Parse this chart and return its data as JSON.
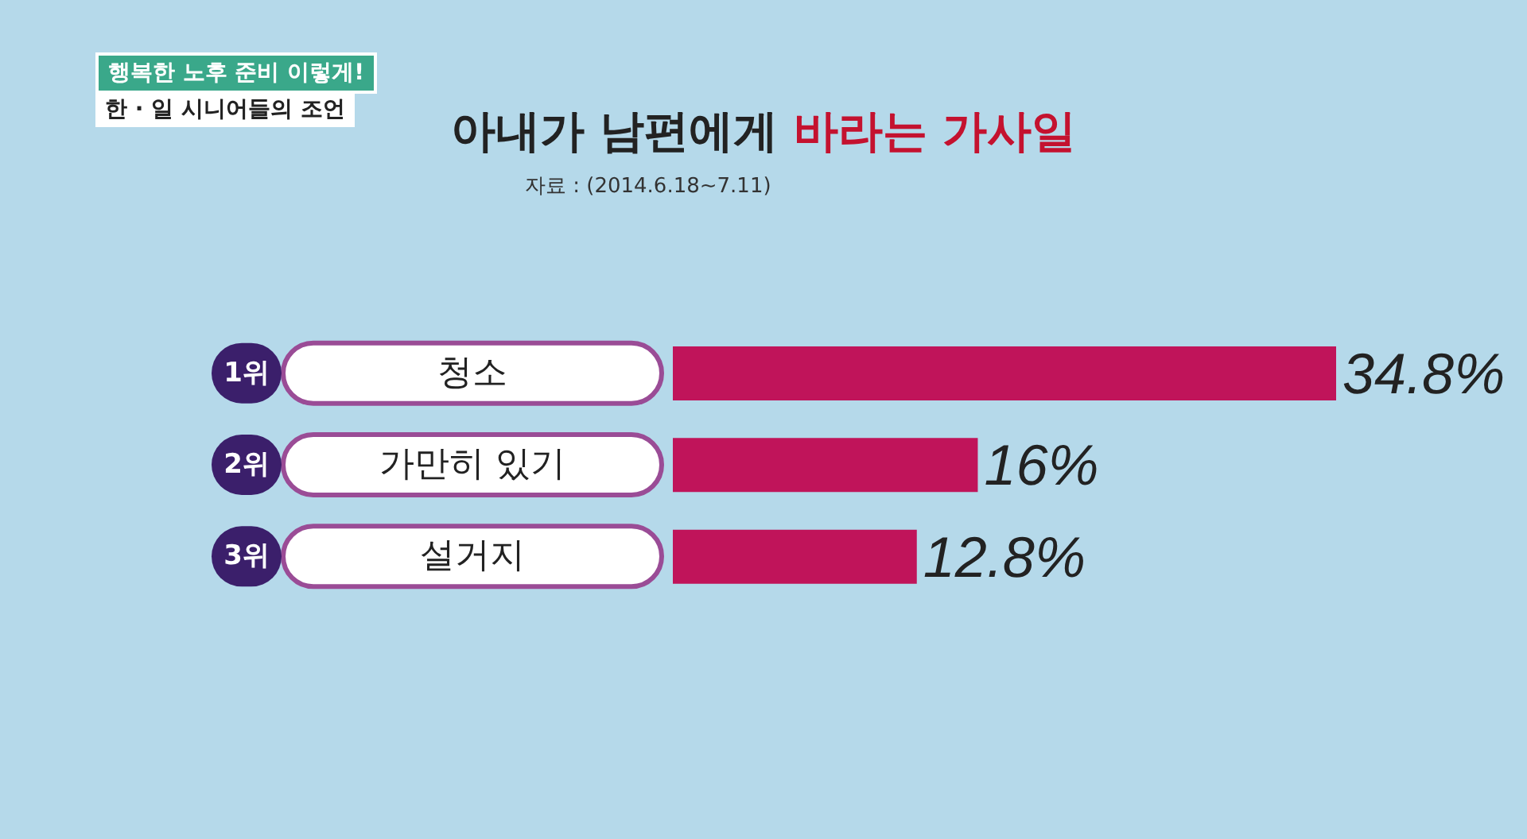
{
  "chart_data": {
    "type": "bar",
    "orientation": "horizontal",
    "title": "아내가 남편에게 바라는 가사일",
    "categories": [
      "청소",
      "가만히 있기",
      "설거지"
    ],
    "values": [
      34.8,
      16,
      12.8
    ],
    "value_labels": [
      "34.8%",
      "16%",
      "12.8%"
    ],
    "color": "#c0145a",
    "annotations": [
      "행복한 노후 준비 이렇게!",
      "한 · 일 시니어들의 조언",
      "자료 : (2014.6.18~7.11)",
      "1위",
      "2위",
      "3위"
    ]
  }
}
